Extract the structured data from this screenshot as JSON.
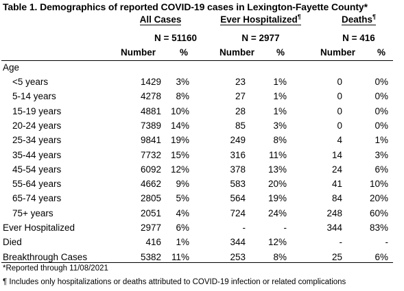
{
  "title": "Table 1. Demographics of reported COVID-19 cases in Lexington-Fayette County*",
  "groups": [
    {
      "label": "All Cases",
      "mark": "",
      "n": "N = 51160"
    },
    {
      "label": "Ever Hospitalized",
      "mark": "¶",
      "n": "N = 2977"
    },
    {
      "label": "Deaths",
      "mark": "¶",
      "n": "N = 416"
    }
  ],
  "subheaders": {
    "number": "Number",
    "pct": "%"
  },
  "section_age": "Age",
  "age_rows": [
    {
      "label": "<5 years",
      "vals": [
        "1429",
        "3%",
        "23",
        "1%",
        "0",
        "0%"
      ]
    },
    {
      "label": "5-14 years",
      "vals": [
        "4278",
        "8%",
        "27",
        "1%",
        "0",
        "0%"
      ]
    },
    {
      "label": "15-19 years",
      "vals": [
        "4881",
        "10%",
        "28",
        "1%",
        "0",
        "0%"
      ]
    },
    {
      "label": "20-24 years",
      "vals": [
        "7389",
        "14%",
        "85",
        "3%",
        "0",
        "0%"
      ]
    },
    {
      "label": "25-34 years",
      "vals": [
        "9841",
        "19%",
        "249",
        "8%",
        "4",
        "1%"
      ]
    },
    {
      "label": "35-44 years",
      "vals": [
        "7732",
        "15%",
        "316",
        "11%",
        "14",
        "3%"
      ]
    },
    {
      "label": "45-54 years",
      "vals": [
        "6092",
        "12%",
        "378",
        "13%",
        "24",
        "6%"
      ]
    },
    {
      "label": "55-64 years",
      "vals": [
        "4662",
        "9%",
        "583",
        "20%",
        "41",
        "10%"
      ]
    },
    {
      "label": "65-74 years",
      "vals": [
        "2805",
        "5%",
        "564",
        "19%",
        "84",
        "20%"
      ]
    },
    {
      "label": "75+ years",
      "vals": [
        "2051",
        "4%",
        "724",
        "24%",
        "248",
        "60%"
      ]
    }
  ],
  "other_rows": [
    {
      "label": "Ever Hospitalized",
      "vals": [
        "2977",
        "6%",
        "-",
        "-",
        "344",
        "83%"
      ]
    },
    {
      "label": "Died",
      "vals": [
        "416",
        "1%",
        "344",
        "12%",
        "-",
        "-"
      ]
    },
    {
      "label": "Breakthrough Cases",
      "vals": [
        "5382",
        "11%",
        "253",
        "8%",
        "25",
        "6%"
      ]
    }
  ],
  "footnotes": [
    "*Reported through 11/08/2021",
    "¶ Includes only hospitalizations or deaths attributed to COVID-19 infection or related complications"
  ]
}
